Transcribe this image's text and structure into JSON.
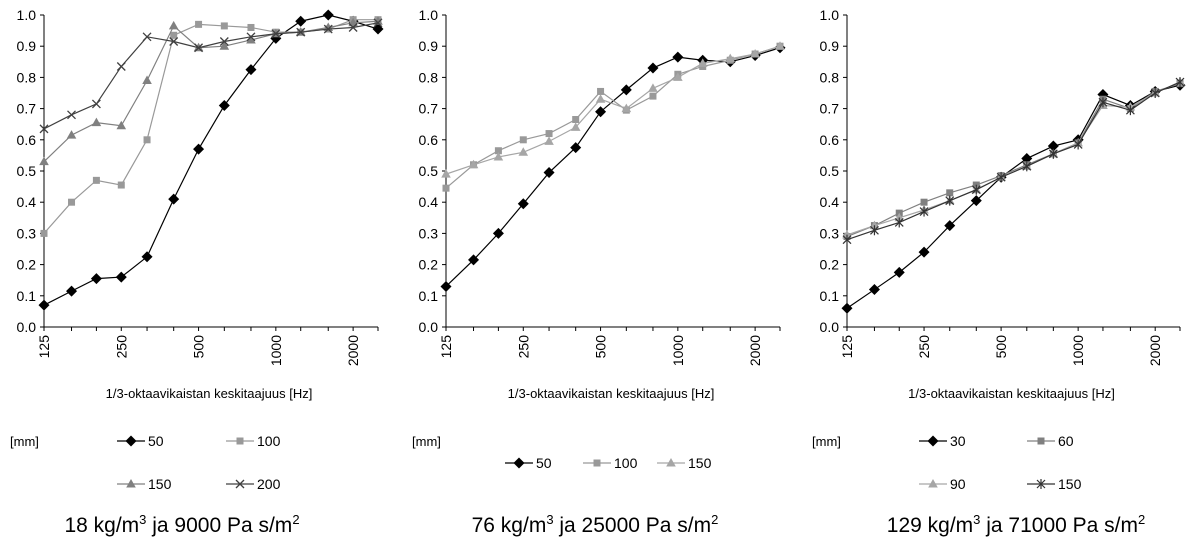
{
  "chart_data": [
    {
      "type": "line",
      "x_values": [
        125,
        160,
        200,
        250,
        315,
        400,
        500,
        630,
        800,
        1000,
        1250,
        1600,
        2000,
        2500
      ],
      "x_tick_labels": [
        "125",
        "250",
        "500",
        "1000",
        "2000"
      ],
      "xlabel": "1/3-oktaavikaistan keskitaajuus [Hz]",
      "ylim": [
        0.0,
        1.0
      ],
      "y_tick_labels": [
        "0.0",
        "0.1",
        "0.2",
        "0.3",
        "0.4",
        "0.5",
        "0.6",
        "0.7",
        "0.8",
        "0.9",
        "1.0"
      ],
      "legend_prefix": "[mm]",
      "caption": {
        "pre": "18 kg/m",
        "sup1": "3",
        "mid": " ja 9000 Pa s/m",
        "sup2": "2"
      },
      "series": [
        {
          "name": "50",
          "color": "#000000",
          "marker": "diamond",
          "values": [
            0.07,
            0.115,
            0.155,
            0.16,
            0.225,
            0.41,
            0.57,
            0.71,
            0.825,
            0.925,
            0.98,
            1.0,
            0.98,
            0.955
          ]
        },
        {
          "name": "100",
          "color": "#999999",
          "marker": "square",
          "values": [
            0.3,
            0.4,
            0.47,
            0.455,
            0.6,
            0.935,
            0.97,
            0.965,
            0.96,
            0.945,
            0.945,
            0.955,
            0.985,
            0.985
          ]
        },
        {
          "name": "150",
          "color": "#808080",
          "marker": "triangle",
          "values": [
            0.53,
            0.615,
            0.655,
            0.645,
            0.79,
            0.965,
            0.895,
            0.9,
            0.92,
            0.94,
            0.945,
            0.96,
            0.975,
            0.98
          ]
        },
        {
          "name": "200",
          "color": "#404040",
          "marker": "x",
          "values": [
            0.635,
            0.68,
            0.715,
            0.835,
            0.93,
            0.915,
            0.895,
            0.915,
            0.93,
            0.94,
            0.945,
            0.955,
            0.96,
            0.975
          ]
        }
      ]
    },
    {
      "type": "line",
      "x_values": [
        125,
        160,
        200,
        250,
        315,
        400,
        500,
        630,
        800,
        1000,
        1250,
        1600,
        2000,
        2500
      ],
      "x_tick_labels": [
        "125",
        "250",
        "500",
        "1000",
        "2000"
      ],
      "xlabel": "1/3-oktaavikaistan keskitaajuus [Hz]",
      "ylim": [
        0.0,
        1.0
      ],
      "y_tick_labels": [
        "0.0",
        "0.1",
        "0.2",
        "0.3",
        "0.4",
        "0.5",
        "0.6",
        "0.7",
        "0.8",
        "0.9",
        "1.0"
      ],
      "legend_prefix": "[mm]",
      "caption": {
        "pre": "76 kg/m",
        "sup1": "3",
        "mid": " ja 25000 Pa s/m",
        "sup2": "2"
      },
      "series": [
        {
          "name": "50",
          "color": "#000000",
          "marker": "diamond",
          "values": [
            0.13,
            0.215,
            0.3,
            0.395,
            0.495,
            0.575,
            0.69,
            0.76,
            0.83,
            0.865,
            0.855,
            0.85,
            0.87,
            0.895
          ]
        },
        {
          "name": "100",
          "color": "#999999",
          "marker": "square",
          "values": [
            0.445,
            0.52,
            0.565,
            0.6,
            0.62,
            0.665,
            0.755,
            0.695,
            0.74,
            0.81,
            0.835,
            0.855,
            0.875,
            0.9
          ]
        },
        {
          "name": "150",
          "color": "#a6a6a6",
          "marker": "triangle",
          "values": [
            0.49,
            0.52,
            0.545,
            0.56,
            0.595,
            0.64,
            0.73,
            0.7,
            0.765,
            0.8,
            0.845,
            0.86,
            0.875,
            0.9
          ]
        }
      ]
    },
    {
      "type": "line",
      "x_values": [
        125,
        160,
        200,
        250,
        315,
        400,
        500,
        630,
        800,
        1000,
        1250,
        1600,
        2000,
        2500
      ],
      "x_tick_labels": [
        "125",
        "250",
        "500",
        "1000",
        "2000"
      ],
      "xlabel": "1/3-oktaavikaistan keskitaajuus [Hz]",
      "ylim": [
        0.0,
        1.0
      ],
      "y_tick_labels": [
        "0.0",
        "0.1",
        "0.2",
        "0.3",
        "0.4",
        "0.5",
        "0.6",
        "0.7",
        "0.8",
        "0.9",
        "1.0"
      ],
      "legend_prefix": "[mm]",
      "caption": {
        "pre": "129 kg/m",
        "sup1": "3",
        "mid": " ja 71000 Pa s/m",
        "sup2": "2"
      },
      "series": [
        {
          "name": "30",
          "color": "#000000",
          "marker": "diamond",
          "values": [
            0.06,
            0.12,
            0.175,
            0.24,
            0.325,
            0.405,
            0.48,
            0.54,
            0.58,
            0.6,
            0.745,
            0.71,
            0.755,
            0.775
          ]
        },
        {
          "name": "60",
          "color": "#808080",
          "marker": "square",
          "values": [
            0.29,
            0.325,
            0.365,
            0.4,
            0.43,
            0.455,
            0.485,
            0.52,
            0.555,
            0.59,
            0.73,
            0.7,
            0.755,
            0.78
          ]
        },
        {
          "name": "90",
          "color": "#a6a6a6",
          "marker": "triangle",
          "values": [
            0.295,
            0.325,
            0.35,
            0.375,
            0.405,
            0.44,
            0.48,
            0.515,
            0.555,
            0.59,
            0.71,
            0.705,
            0.75,
            0.785
          ]
        },
        {
          "name": "150",
          "color": "#333333",
          "marker": "star",
          "values": [
            0.28,
            0.31,
            0.335,
            0.37,
            0.405,
            0.44,
            0.48,
            0.515,
            0.555,
            0.585,
            0.72,
            0.695,
            0.75,
            0.785
          ]
        }
      ]
    }
  ]
}
